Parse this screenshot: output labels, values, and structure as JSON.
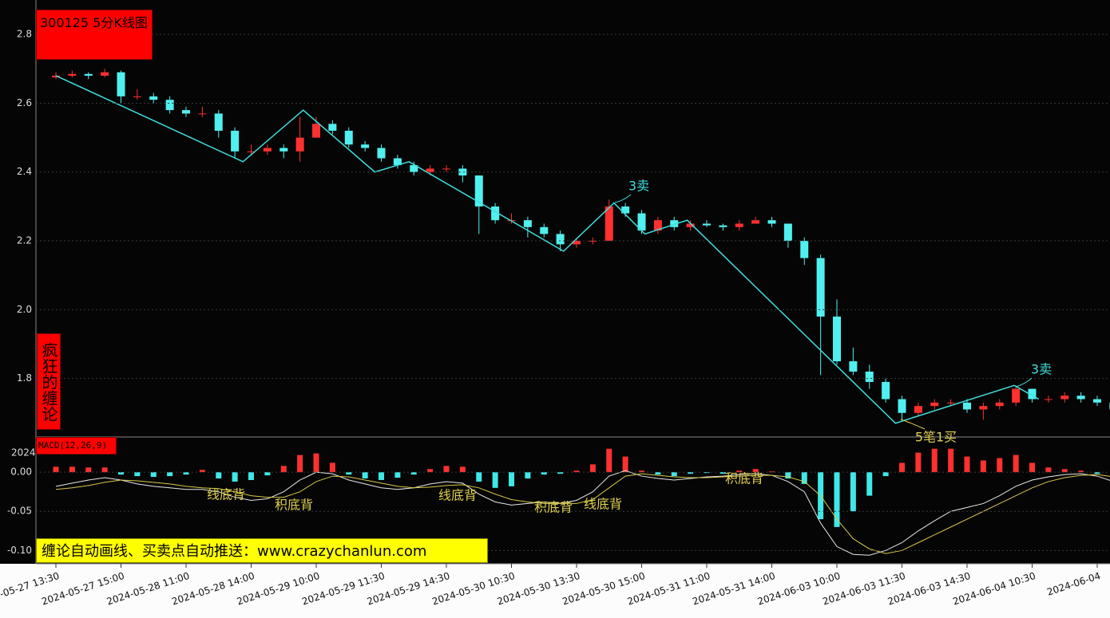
{
  "chart_data": [
    {
      "type": "candlestick",
      "title": "300125 5分K线图",
      "categories": [
        "2024-05-27 13:30",
        null,
        null,
        null,
        "2024-05-27 15:00",
        null,
        null,
        null,
        "2024-05-28 11:00",
        null,
        null,
        null,
        "2024-05-28 14:00",
        null,
        null,
        null,
        "2024-05-29 10:00",
        null,
        null,
        null,
        "2024-05-29 11:30",
        null,
        null,
        null,
        "2024-05-29 14:30",
        null,
        null,
        null,
        "2024-05-30 10:30",
        null,
        null,
        null,
        "2024-05-30 13:30",
        null,
        null,
        null,
        "2024-05-30 15:00",
        null,
        null,
        null,
        "2024-05-31 11:00",
        null,
        null,
        null,
        "2024-05-31 14:00",
        null,
        null,
        null,
        "2024-06-03 10:00",
        null,
        null,
        null,
        "2024-06-03 11:30",
        null,
        null,
        null,
        "2024-06-03 14:30",
        null,
        null,
        null,
        "2024-06-04 10:30",
        null,
        null,
        null,
        "2024-06-04",
        null
      ],
      "ohlc": [
        [
          2.675,
          2.69,
          2.67,
          2.68
        ],
        [
          2.68,
          2.695,
          2.675,
          2.685
        ],
        [
          2.685,
          2.69,
          2.67,
          2.68
        ],
        [
          2.68,
          2.7,
          2.675,
          2.69
        ],
        [
          2.69,
          2.695,
          2.6,
          2.62
        ],
        [
          2.62,
          2.64,
          2.61,
          2.62
        ],
        [
          2.62,
          2.63,
          2.6,
          2.61
        ],
        [
          2.61,
          2.62,
          2.57,
          2.58
        ],
        [
          2.58,
          2.59,
          2.56,
          2.57
        ],
        [
          2.57,
          2.59,
          2.56,
          2.57
        ],
        [
          2.57,
          2.58,
          2.5,
          2.52
        ],
        [
          2.52,
          2.53,
          2.44,
          2.46
        ],
        [
          2.46,
          2.48,
          2.45,
          2.46
        ],
        [
          2.46,
          2.48,
          2.45,
          2.47
        ],
        [
          2.47,
          2.48,
          2.44,
          2.46
        ],
        [
          2.46,
          2.56,
          2.43,
          2.5
        ],
        [
          2.5,
          2.56,
          2.5,
          2.54
        ],
        [
          2.54,
          2.55,
          2.51,
          2.52
        ],
        [
          2.52,
          2.53,
          2.47,
          2.48
        ],
        [
          2.48,
          2.49,
          2.46,
          2.47
        ],
        [
          2.47,
          2.48,
          2.43,
          2.44
        ],
        [
          2.44,
          2.45,
          2.41,
          2.42
        ],
        [
          2.42,
          2.43,
          2.39,
          2.4
        ],
        [
          2.4,
          2.42,
          2.39,
          2.41
        ],
        [
          2.41,
          2.42,
          2.4,
          2.41
        ],
        [
          2.41,
          2.42,
          2.37,
          2.39
        ],
        [
          2.39,
          2.39,
          2.22,
          2.3
        ],
        [
          2.3,
          2.31,
          2.25,
          2.26
        ],
        [
          2.26,
          2.28,
          2.25,
          2.26
        ],
        [
          2.26,
          2.27,
          2.21,
          2.24
        ],
        [
          2.24,
          2.25,
          2.21,
          2.22
        ],
        [
          2.22,
          2.23,
          2.17,
          2.19
        ],
        [
          2.19,
          2.21,
          2.18,
          2.2
        ],
        [
          2.2,
          2.21,
          2.19,
          2.2
        ],
        [
          2.2,
          2.32,
          2.2,
          2.3
        ],
        [
          2.3,
          2.31,
          2.27,
          2.28
        ],
        [
          2.28,
          2.29,
          2.22,
          2.23
        ],
        [
          2.23,
          2.27,
          2.22,
          2.26
        ],
        [
          2.26,
          2.27,
          2.23,
          2.24
        ],
        [
          2.24,
          2.26,
          2.23,
          2.25
        ],
        [
          2.25,
          2.26,
          2.24,
          2.245
        ],
        [
          2.245,
          2.25,
          2.23,
          2.24
        ],
        [
          2.24,
          2.26,
          2.23,
          2.25
        ],
        [
          2.25,
          2.27,
          2.25,
          2.26
        ],
        [
          2.26,
          2.27,
          2.24,
          2.25
        ],
        [
          2.25,
          2.25,
          2.18,
          2.2
        ],
        [
          2.2,
          2.21,
          2.13,
          2.15
        ],
        [
          2.15,
          2.16,
          1.81,
          1.98
        ],
        [
          1.98,
          2.03,
          1.84,
          1.85
        ],
        [
          1.85,
          1.89,
          1.81,
          1.82
        ],
        [
          1.82,
          1.84,
          1.77,
          1.79
        ],
        [
          1.79,
          1.8,
          1.73,
          1.74
        ],
        [
          1.74,
          1.75,
          1.68,
          1.7
        ],
        [
          1.7,
          1.73,
          1.69,
          1.72
        ],
        [
          1.72,
          1.74,
          1.71,
          1.73
        ],
        [
          1.73,
          1.74,
          1.72,
          1.73
        ],
        [
          1.73,
          1.74,
          1.7,
          1.71
        ],
        [
          1.71,
          1.73,
          1.68,
          1.72
        ],
        [
          1.72,
          1.74,
          1.71,
          1.73
        ],
        [
          1.73,
          1.78,
          1.72,
          1.77
        ],
        [
          1.77,
          1.77,
          1.73,
          1.74
        ],
        [
          1.74,
          1.75,
          1.73,
          1.74
        ],
        [
          1.74,
          1.76,
          1.73,
          1.75
        ],
        [
          1.75,
          1.76,
          1.73,
          1.74
        ],
        [
          1.74,
          1.75,
          1.72,
          1.73
        ],
        [
          1.73,
          1.74,
          1.7,
          1.71
        ]
      ],
      "up_color": "#ff3030",
      "down_color": "#50f0f0",
      "zigzag": {
        "color": "#40dede",
        "x": [
          0,
          11.5,
          15.2,
          19.6,
          21.7,
          31.2,
          34.3,
          36.2,
          38.8,
          51.6,
          58.9,
          60.4
        ],
        "y": [
          2.68,
          2.43,
          2.58,
          2.4,
          2.43,
          2.17,
          2.31,
          2.22,
          2.26,
          1.67,
          1.78,
          1.74
        ]
      },
      "annotations": [
        "3卖",
        "3卖",
        "5笔1买"
      ],
      "ylim": [
        1.63,
        2.9
      ],
      "yticks": [
        1.8,
        {
          "value": 2,
          "label": "2.0"
        },
        2.2,
        2.4,
        2.6,
        2.8
      ],
      "grid": true
    },
    {
      "type": "macd",
      "title": "MACD(12,26,9)",
      "corner_label": "2024-",
      "histogram": [
        0.007,
        0.007,
        0.006,
        0.006,
        -0.003,
        -0.005,
        -0.006,
        -0.005,
        -0.003,
        0.003,
        -0.008,
        -0.012,
        -0.01,
        -0.004,
        0.008,
        0.022,
        0.024,
        0.012,
        -0.003,
        -0.008,
        -0.01,
        -0.007,
        -0.003,
        0.004,
        0.008,
        0.007,
        -0.012,
        -0.02,
        -0.018,
        -0.008,
        -0.003,
        -0.002,
        0.002,
        0.01,
        0.03,
        0.02,
        0.002,
        -0.003,
        -0.005,
        -0.002,
        -0.001,
        -0.002,
        0.002,
        0.004,
        0.001,
        -0.008,
        -0.015,
        -0.06,
        -0.07,
        -0.05,
        -0.03,
        -0.005,
        0.012,
        0.025,
        0.03,
        0.03,
        0.02,
        0.015,
        0.018,
        0.022,
        0.012,
        0.006,
        0.004,
        0.002,
        -0.002,
        -0.007
      ],
      "up_color": "#ff3030",
      "down_color": "#40e8e8",
      "series": [
        {
          "color": "#e8e8e8",
          "values": [
            -0.018,
            -0.014,
            -0.01,
            -0.007,
            -0.01,
            -0.015,
            -0.018,
            -0.02,
            -0.022,
            -0.022,
            -0.025,
            -0.032,
            -0.036,
            -0.034,
            -0.025,
            -0.01,
            0,
            -0.002,
            -0.01,
            -0.015,
            -0.02,
            -0.022,
            -0.02,
            -0.015,
            -0.012,
            -0.014,
            -0.028,
            -0.038,
            -0.042,
            -0.04,
            -0.038,
            -0.04,
            -0.036,
            -0.025,
            -0.005,
            0.002,
            -0.005,
            -0.008,
            -0.01,
            -0.008,
            -0.006,
            -0.005,
            -0.003,
            -0.002,
            -0.004,
            -0.012,
            -0.025,
            -0.065,
            -0.095,
            -0.105,
            -0.106,
            -0.1,
            -0.09,
            -0.075,
            -0.062,
            -0.05,
            -0.045,
            -0.04,
            -0.03,
            -0.018,
            -0.01,
            -0.006,
            -0.003,
            -0.002,
            -0.005,
            -0.012
          ]
        },
        {
          "color": "#d8c84a",
          "values": [
            -0.022,
            -0.02,
            -0.017,
            -0.013,
            -0.01,
            -0.011,
            -0.013,
            -0.015,
            -0.018,
            -0.02,
            -0.021,
            -0.025,
            -0.03,
            -0.032,
            -0.032,
            -0.025,
            -0.012,
            -0.005,
            -0.006,
            -0.01,
            -0.014,
            -0.018,
            -0.02,
            -0.019,
            -0.017,
            -0.016,
            -0.02,
            -0.028,
            -0.035,
            -0.038,
            -0.04,
            -0.04,
            -0.04,
            -0.035,
            -0.02,
            -0.005,
            -0.002,
            -0.004,
            -0.006,
            -0.007,
            -0.007,
            -0.006,
            -0.005,
            -0.004,
            -0.004,
            -0.006,
            -0.012,
            -0.03,
            -0.06,
            -0.085,
            -0.098,
            -0.104,
            -0.1,
            -0.09,
            -0.08,
            -0.07,
            -0.06,
            -0.05,
            -0.04,
            -0.03,
            -0.02,
            -0.012,
            -0.007,
            -0.004,
            -0.003,
            -0.006
          ]
        }
      ],
      "annotations": [
        "线底背",
        "积底背",
        "线底背",
        "积底背",
        "线底背",
        "积底背"
      ],
      "ylim": [
        -0.117,
        0.045
      ],
      "yticks": [
        {
          "value": -0.1,
          "label": "-0.10"
        },
        {
          "value": -0.05,
          "label": "-0.05"
        },
        {
          "value": 0,
          "label": "0.00"
        }
      ],
      "grid": true
    }
  ],
  "overlay": {
    "side_label": "疯狂的缠论",
    "banner": "缠论自动画线、买卖点自动推送：www.crazychanlun.com"
  }
}
